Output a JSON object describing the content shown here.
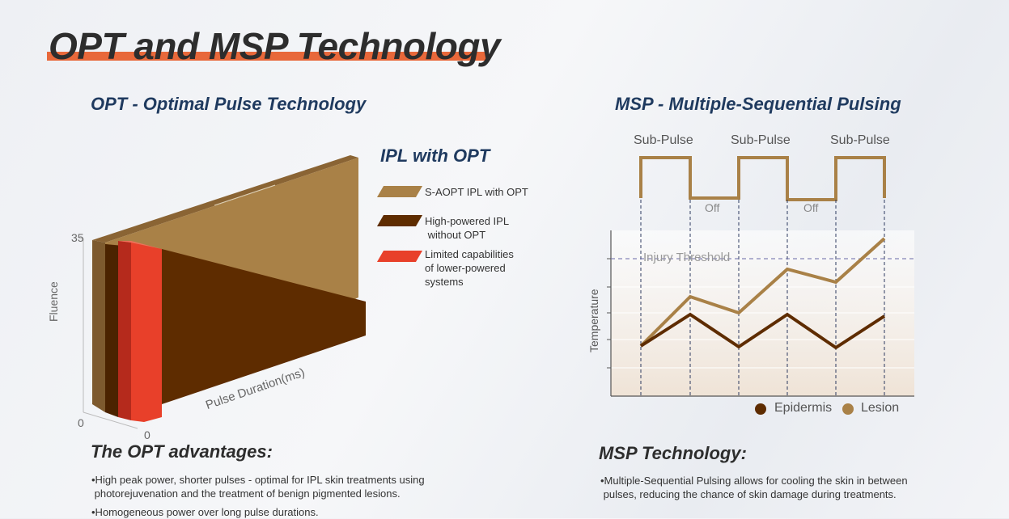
{
  "title": "OPT and MSP Technology",
  "opt": {
    "heading": "OPT - Optimal Pulse Technology",
    "legend_title": "IPL with OPT",
    "legend": [
      {
        "label": "S-AOPT IPL with OPT",
        "color": "#a98147"
      },
      {
        "label": "High-powered IPL\n without OPT",
        "color": "#5e2c00"
      },
      {
        "label": "Limited capabilities\nof lower-powered\nsystems",
        "color": "#e8402a"
      }
    ],
    "y_axis_label": "Fluence",
    "x_axis_label": "Pulse Duration(ms)",
    "y_max": "35",
    "y_zero": "0",
    "x_zero": "0",
    "advantages_title": "The OPT advantages:",
    "advantages": [
      "•High peak power, shorter pulses - optimal for IPL skin treatments using\n photorejuvenation and the treatment of benign pigmented lesions.",
      "•Homogeneous power over long pulse durations."
    ]
  },
  "msp": {
    "heading": "MSP - Multiple-Sequential Pulsing",
    "sub_pulse": "Sub-Pulse",
    "off": "Off",
    "threshold": "Injury Threshold",
    "y_axis_label": "Temperature",
    "legend": [
      {
        "label": "Epidermis",
        "color": "#5e2c00"
      },
      {
        "label": "Lesion",
        "color": "#a98147"
      }
    ],
    "tech_title": "MSP Technology:",
    "tech_text": "•Multiple-Sequential Pulsing allows for cooling the skin in between\n pulses, reducing the chance of skin damage during treatments."
  }
}
